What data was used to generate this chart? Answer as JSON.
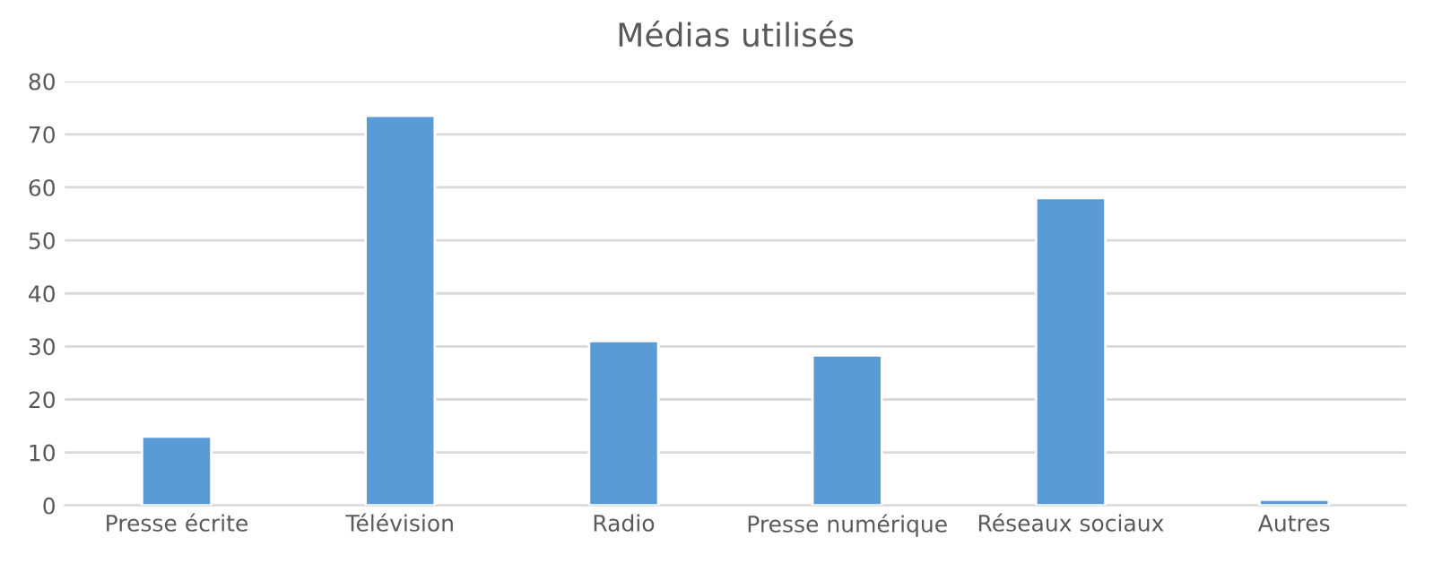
{
  "chart_data": {
    "type": "bar",
    "title": "Médias utilisés",
    "categories": [
      "Presse écrite",
      "Télévision",
      "Radio",
      "Presse numérique",
      "Réseaux sociaux",
      "Autres"
    ],
    "values": [
      13,
      73.5,
      31,
      28.3,
      58,
      1.1
    ],
    "color": "#5b9bd5",
    "ylim": [
      0,
      80
    ],
    "yticks": [
      0,
      10,
      20,
      30,
      40,
      50,
      60,
      70,
      80
    ],
    "grid": "y",
    "legend": false
  }
}
